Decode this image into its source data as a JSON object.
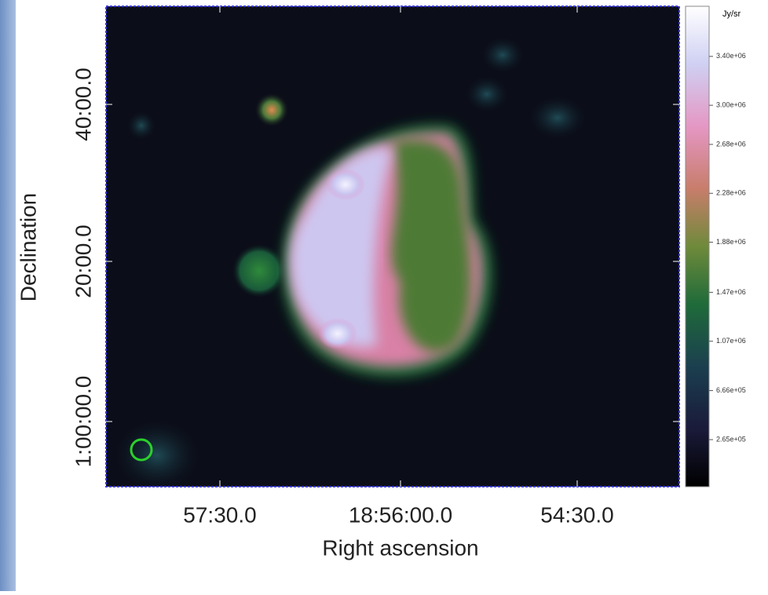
{
  "chart_data": {
    "type": "image",
    "xlabel": "Right ascension",
    "ylabel": "Declination",
    "xticks": [
      "57:30.0",
      "18:56:00.0",
      "54:30.0"
    ],
    "yticks": [
      "1:00:00.0",
      "20:00.0",
      "40:00.0"
    ],
    "colorbar": {
      "label": "Jy/sr",
      "lim": [
        -120000,
        3810000
      ],
      "ticks": [
        {
          "value": 265000,
          "label": "2.65e+05"
        },
        {
          "value": 666000,
          "label": "6.66e+05"
        },
        {
          "value": 1070000,
          "label": "1.07e+06"
        },
        {
          "value": 1470000,
          "label": "1.47e+06"
        },
        {
          "value": 1880000,
          "label": "1.88e+06"
        },
        {
          "value": 2280000,
          "label": "2.28e+06"
        },
        {
          "value": 2680000,
          "label": "2.68e+06"
        },
        {
          "value": 3000000,
          "label": "3.00e+06"
        },
        {
          "value": 3400000,
          "label": "3.40e+06"
        }
      ]
    }
  }
}
